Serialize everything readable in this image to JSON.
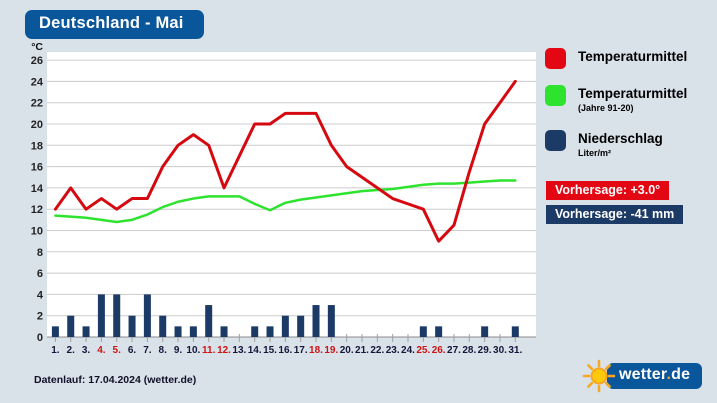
{
  "title": "Deutschland - Mai",
  "legend": [
    {
      "label": "Temperaturmittel",
      "sublabel": "",
      "color": "#e30613"
    },
    {
      "label": "Temperaturmittel",
      "sublabel": "(Jahre 91-20)",
      "color": "#2ee32e"
    },
    {
      "label": "Niederschlag",
      "sublabel": "Liter/m²",
      "color": "#1c3a66"
    }
  ],
  "badges": [
    {
      "text": "Vorhersage: +3.0°",
      "color": "#e30613"
    },
    {
      "text": "Vorhersage: -41 mm",
      "color": "#1c3a66"
    }
  ],
  "footer": "Datenlauf: 17.04.2024 (wetter.de)",
  "logo": {
    "text_main": "wetter",
    "text_dot": ".",
    "text_suffix": "de"
  },
  "chart_data": {
    "type": "line+bar",
    "title": "Deutschland - Mai",
    "ylabel": "°C",
    "ylim": [
      0,
      26
    ],
    "yticks": [
      0,
      2,
      4,
      6,
      8,
      10,
      12,
      14,
      16,
      18,
      20,
      22,
      24,
      26
    ],
    "grid": true,
    "x": [
      1,
      2,
      3,
      4,
      5,
      6,
      7,
      8,
      9,
      10,
      11,
      12,
      13,
      14,
      15,
      16,
      17,
      18,
      19,
      20,
      21,
      22,
      23,
      24,
      25,
      26,
      27,
      28,
      29,
      30,
      31
    ],
    "x_labels": [
      "1.",
      "2.",
      "3.",
      "4.",
      "5.",
      "6.",
      "7.",
      "8.",
      "9.",
      "10.",
      "11.",
      "12.",
      "13.",
      "14.",
      "15.",
      "16.",
      "17.",
      "18.",
      "19.",
      "20.",
      "21.",
      "22.",
      "23.",
      "24.",
      "25.",
      "26.",
      "27.",
      "28.",
      "29.",
      "30.",
      "31."
    ],
    "weekend_days": [
      4,
      5,
      11,
      12,
      18,
      19,
      25,
      26
    ],
    "x_label_color": "#16163a",
    "weekend_color": "#cf1414",
    "series": [
      {
        "name": "Temperaturmittel",
        "type": "line",
        "color": "#d50a11",
        "values": [
          12,
          14,
          12,
          13,
          12,
          13,
          13,
          16,
          18,
          19,
          18,
          14,
          17,
          20,
          20,
          21,
          21,
          21,
          18,
          16,
          15,
          14,
          13,
          12.5,
          12,
          9,
          10.5,
          15.5,
          20,
          22,
          24
        ]
      },
      {
        "name": "Temperaturmittel (Jahre 91-20)",
        "type": "line",
        "color": "#2ee32e",
        "values": [
          11.4,
          11.3,
          11.2,
          11.0,
          10.8,
          11.0,
          11.5,
          12.2,
          12.7,
          13.0,
          13.2,
          13.2,
          13.2,
          12.5,
          11.9,
          12.6,
          12.9,
          13.1,
          13.3,
          13.5,
          13.7,
          13.8,
          13.9,
          14.1,
          14.3,
          14.4,
          14.4,
          14.5,
          14.6,
          14.7,
          14.7
        ]
      },
      {
        "name": "Niederschlag (Liter/m²)",
        "type": "bar",
        "color": "#1c3a66",
        "values": [
          1,
          2,
          1,
          4,
          4,
          2,
          4,
          2,
          1,
          1,
          3,
          1,
          0,
          1,
          1,
          2,
          2,
          3,
          3,
          0,
          0,
          0,
          0,
          0,
          1,
          1,
          0,
          0,
          1,
          0,
          1
        ]
      }
    ]
  }
}
